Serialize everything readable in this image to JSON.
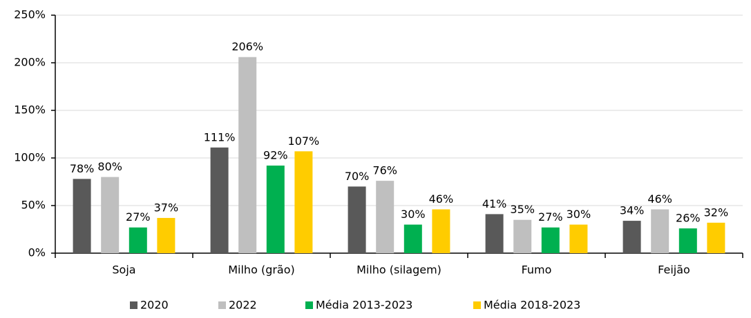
{
  "chart_data": {
    "type": "bar",
    "categories": [
      "Soja",
      "Milho (grão)",
      "Milho (silagem)",
      "Fumo",
      "Feijão"
    ],
    "series": [
      {
        "name": "2020",
        "color": "#595959",
        "values": [
          78,
          111,
          70,
          41,
          34
        ],
        "value_labels": [
          "78%",
          "111%",
          "70%",
          "41%",
          "34%"
        ]
      },
      {
        "name": "2022",
        "color": "#bfbfbf",
        "values": [
          80,
          206,
          76,
          35,
          46
        ],
        "value_labels": [
          "80%",
          "206%",
          "76%",
          "35%",
          "46%"
        ]
      },
      {
        "name": "Média 2013-2023",
        "color": "#00b050",
        "values": [
          27,
          92,
          30,
          27,
          26
        ],
        "value_labels": [
          "27%",
          "92%",
          "30%",
          "27%",
          "26%"
        ]
      },
      {
        "name": "Média 2018-2023",
        "color": "#ffcc00",
        "values": [
          37,
          107,
          46,
          30,
          32
        ],
        "value_labels": [
          "37%",
          "107%",
          "46%",
          "30%",
          "32%"
        ]
      }
    ],
    "ylim": [
      0,
      250
    ],
    "yticks": [
      {
        "value": 0,
        "label": "0%"
      },
      {
        "value": 50,
        "label": "50%"
      },
      {
        "value": 100,
        "label": "100%"
      },
      {
        "value": 150,
        "label": "150%"
      },
      {
        "value": 200,
        "label": "200%"
      },
      {
        "value": 250,
        "label": "250%"
      }
    ],
    "grid": true,
    "legend": "bottom"
  }
}
